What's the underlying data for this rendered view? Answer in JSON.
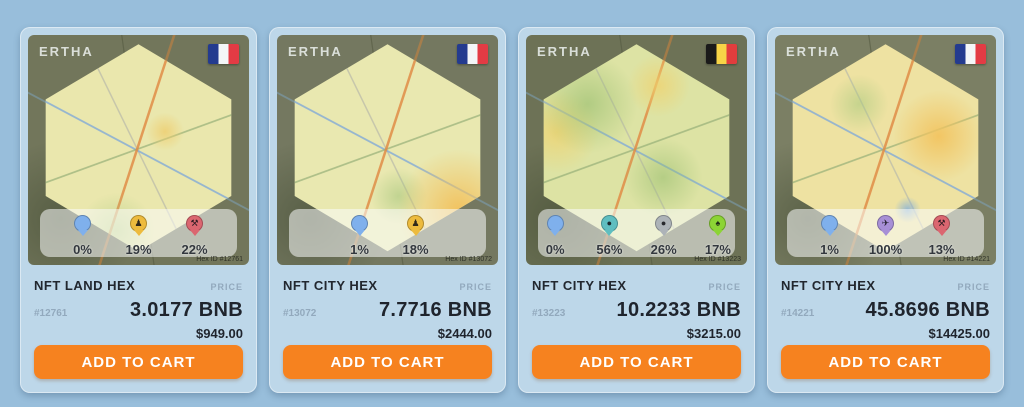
{
  "brand": "ERTHA",
  "colors": {
    "accent_orange": "#F6821F",
    "page_background": "#98BEDB",
    "card_background": "#BDD7E9",
    "pin_blue": "#7FB0EC",
    "pin_gold": "#EDBB3D",
    "pin_red": "#DB6670",
    "pin_teal": "#5FBEC0",
    "pin_gray": "#ADB3B8",
    "pin_green": "#8CD435",
    "pin_purple": "#A78FD6"
  },
  "cards": [
    {
      "title": "NFT LAND HEX",
      "price_label": "PRICE",
      "id": "#12761",
      "price_bnb": "3.0177 BNB",
      "price_usd": "$949.00",
      "button": "ADD TO CART",
      "hex_label": "Hex ID #12761",
      "flag": "France",
      "pins": [
        {
          "name": "water-pin",
          "pct": "0%",
          "glyph": ""
        },
        {
          "name": "industry-pin",
          "pct": "19%",
          "glyph": "♟"
        },
        {
          "name": "factory-pin",
          "pct": "22%",
          "glyph": "⚒"
        }
      ]
    },
    {
      "title": "NFT CITY HEX",
      "price_label": "PRICE",
      "id": "#13072",
      "price_bnb": "7.7716 BNB",
      "price_usd": "$2444.00",
      "button": "ADD TO CART",
      "hex_label": "Hex ID #13072",
      "flag": "France",
      "pins": [
        {
          "name": "water-pin",
          "pct": "1%",
          "glyph": ""
        },
        {
          "name": "industry-pin",
          "pct": "18%",
          "glyph": "♟"
        }
      ]
    },
    {
      "title": "NFT CITY HEX",
      "price_label": "PRICE",
      "id": "#13223",
      "price_bnb": "10.2233 BNB",
      "price_usd": "$3215.00",
      "button": "ADD TO CART",
      "hex_label": "Hex ID #13223",
      "flag": "Belgium",
      "pins": [
        {
          "name": "water-pin",
          "pct": "0%",
          "glyph": ""
        },
        {
          "name": "ore-pin",
          "pct": "56%",
          "glyph": "●"
        },
        {
          "name": "metal-pin",
          "pct": "26%",
          "glyph": "●"
        },
        {
          "name": "forest-pin",
          "pct": "17%",
          "glyph": "♠"
        }
      ]
    },
    {
      "title": "NFT CITY HEX",
      "price_label": "PRICE",
      "id": "#14221",
      "price_bnb": "45.8696 BNB",
      "price_usd": "$14425.00",
      "button": "ADD TO CART",
      "hex_label": "Hex ID #14221",
      "flag": "France",
      "pins": [
        {
          "name": "water-pin",
          "pct": "1%",
          "glyph": ""
        },
        {
          "name": "airport-pin",
          "pct": "100%",
          "glyph": "✈"
        },
        {
          "name": "factory-pin",
          "pct": "13%",
          "glyph": "⚒"
        }
      ]
    }
  ]
}
